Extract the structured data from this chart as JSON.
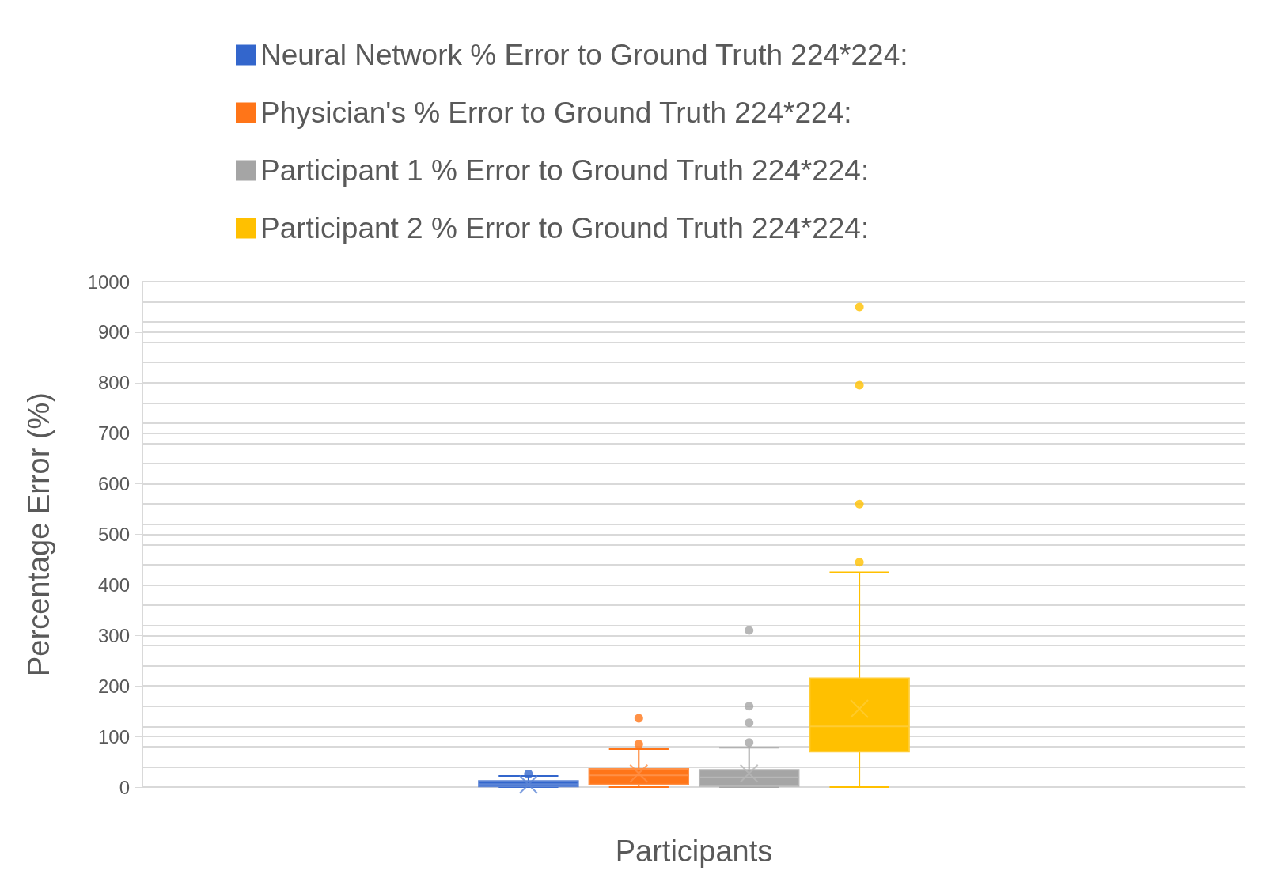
{
  "chart_data": {
    "type": "box",
    "xlabel": "Participants",
    "ylabel": "Percentage Error (%)",
    "categories": [
      null
    ],
    "series": [
      {
        "name": "Neural Network % Error to Ground Truth 224*224:",
        "color": "#3366cc",
        "boxes": [
          {
            "low": 0,
            "q1": 1,
            "median": 6,
            "q3": 12,
            "high": 22,
            "mean": 5,
            "outliers": [
              26
            ]
          }
        ]
      },
      {
        "name": "Physician's % Error to Ground Truth 224*224:",
        "color": "#ff7518",
        "boxes": [
          {
            "low": 0,
            "q1": 5,
            "median": 23,
            "q3": 36,
            "high": 75,
            "mean": 27,
            "outliers": [
              85,
              136
            ]
          }
        ]
      },
      {
        "name": "Participant 1 % Error to Ground Truth 224*224:",
        "color": "#a5a5a5",
        "boxes": [
          {
            "low": 0,
            "q1": 2,
            "median": 19,
            "q3": 34,
            "high": 78,
            "mean": 27,
            "outliers": [
              88,
              127,
              160,
              310
            ]
          }
        ]
      },
      {
        "name": "Participant 2 % Error to Ground Truth 224*224:",
        "color": "#ffc000",
        "boxes": [
          {
            "low": 0,
            "q1": 70,
            "median": 120,
            "q3": 215,
            "high": 425,
            "mean": 155,
            "outliers": [
              445,
              560,
              795,
              950
            ]
          }
        ]
      }
    ],
    "ylim": [
      0,
      1000
    ],
    "yticks": [
      0,
      100,
      200,
      300,
      400,
      500,
      600,
      700,
      800,
      900,
      1000
    ],
    "grid": "y",
    "legend": "top",
    "marker": "circle"
  }
}
